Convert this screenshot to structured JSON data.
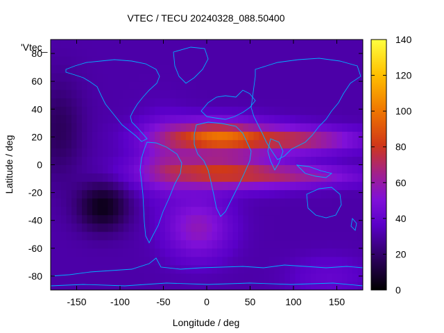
{
  "chart_data": {
    "type": "heatmap",
    "title": "VTEC / TECU 20240328_088.50400",
    "xlabel": "Longitude / deg",
    "ylabel": "Latitude / deg",
    "series_key_label": "'Vtec_",
    "xlim": [
      -180,
      180
    ],
    "ylim": [
      -90,
      90
    ],
    "x_ticks": [
      -150,
      -100,
      -50,
      0,
      50,
      100,
      150
    ],
    "y_ticks": [
      -80,
      -60,
      -40,
      -20,
      0,
      20,
      40,
      60,
      80
    ],
    "colorbar": {
      "range": [
        0,
        140
      ],
      "ticks": [
        0,
        20,
        40,
        60,
        80,
        100,
        120,
        140
      ],
      "palette": [
        "#000000",
        "#2a0058",
        "#5a00c8",
        "#8010d8",
        "#a02090",
        "#d03818",
        "#f07800",
        "#ffc000",
        "#ffff40"
      ]
    },
    "coastline_color": "#00b0ff",
    "grid": false,
    "legend": "top-left"
  }
}
